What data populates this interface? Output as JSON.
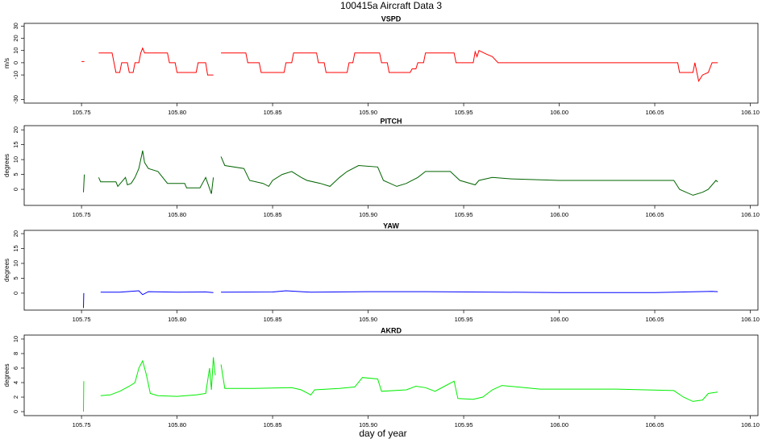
{
  "title": "100415a   Aircraft Data 3",
  "x_label": "day of year",
  "chart_data": [
    {
      "type": "line",
      "title": "VSPD",
      "y_label": "m/s",
      "color": "#ff0000",
      "xlim": [
        105.72,
        106.104
      ],
      "xticks": [
        105.75,
        {
          "value": 105.8,
          "label": "105.80"
        },
        105.85,
        {
          "value": 105.9,
          "label": "105.90"
        },
        105.95,
        {
          "value": 106.0,
          "label": "106.00"
        },
        106.05,
        {
          "value": 106.1,
          "label": "106.10"
        }
      ],
      "ylim": [
        -33,
        32.2
      ],
      "yticks": [
        -30,
        -10,
        0,
        10,
        20,
        30
      ],
      "x": [
        105.75,
        105.7515,
        null,
        105.759,
        105.766,
        105.767,
        105.768,
        105.77,
        105.771,
        105.774,
        105.775,
        105.777,
        105.778,
        105.78,
        105.781,
        105.782,
        105.783,
        105.795,
        105.796,
        105.799,
        105.8,
        105.81,
        105.811,
        105.815,
        105.816,
        105.819,
        null,
        105.823,
        105.836,
        105.837,
        105.843,
        105.844,
        105.856,
        105.857,
        105.86,
        105.861,
        105.873,
        105.874,
        105.877,
        105.878,
        105.889,
        105.89,
        105.892,
        105.893,
        105.906,
        105.907,
        105.91,
        105.911,
        105.922,
        105.923,
        105.925,
        105.926,
        105.929,
        105.93,
        105.945,
        105.946,
        105.955,
        105.956,
        105.957,
        105.958,
        105.962,
        105.965,
        105.968,
        106.062,
        106.063,
        106.07,
        106.071,
        106.073,
        106.075,
        106.078,
        106.08,
        106.083
      ],
      "values": [
        1,
        1,
        null,
        8,
        8,
        0,
        -8,
        -8,
        0,
        0,
        -8,
        -8,
        0,
        0,
        8,
        12,
        8,
        8,
        0,
        0,
        -8,
        -8,
        0,
        0,
        -10,
        -10,
        null,
        8,
        8,
        0,
        0,
        -8,
        -8,
        0,
        0,
        8,
        8,
        0,
        0,
        -8,
        -8,
        0,
        0,
        8,
        8,
        0,
        0,
        -8,
        -8,
        -5,
        -5,
        0,
        0,
        8,
        8,
        0,
        0,
        9,
        5,
        10,
        7,
        5,
        0,
        0,
        -8,
        -8,
        0,
        -15,
        -10,
        -8,
        0,
        0
      ]
    },
    {
      "type": "line",
      "title": "PITCH",
      "y_label": "degrees",
      "color": "#006400",
      "xlim": [
        105.72,
        106.104
      ],
      "xticks": [
        105.75,
        {
          "value": 105.8,
          "label": "105.80"
        },
        105.85,
        {
          "value": 105.9,
          "label": "105.90"
        },
        105.95,
        {
          "value": 106.0,
          "label": "106.00"
        },
        106.05,
        {
          "value": 106.1,
          "label": "106.10"
        }
      ],
      "ylim": [
        -5.4,
        21.4
      ],
      "yticks": [
        0,
        5,
        10,
        15,
        20
      ],
      "x": [
        105.751,
        105.7515,
        null,
        105.759,
        105.76,
        105.768,
        105.769,
        105.771,
        105.773,
        105.774,
        105.776,
        105.778,
        105.78,
        105.782,
        105.783,
        105.785,
        105.79,
        105.795,
        105.804,
        105.805,
        105.812,
        105.815,
        105.818,
        105.819,
        null,
        105.823,
        105.825,
        105.835,
        105.838,
        105.845,
        105.848,
        105.85,
        105.855,
        105.86,
        105.865,
        105.868,
        105.875,
        105.88,
        105.885,
        105.889,
        105.895,
        105.905,
        105.908,
        105.915,
        105.92,
        105.926,
        105.93,
        105.943,
        105.948,
        105.956,
        105.958,
        105.965,
        105.975,
        106.0,
        106.06,
        106.063,
        106.07,
        106.075,
        106.078,
        106.082,
        106.083
      ],
      "values": [
        -1,
        5,
        null,
        4,
        2.5,
        2.5,
        1,
        2.5,
        4,
        1.5,
        2,
        4,
        7,
        13,
        9,
        7,
        6,
        2,
        2,
        0.5,
        0.5,
        4,
        -1.5,
        4,
        null,
        11,
        8,
        7,
        3,
        2,
        1,
        3,
        5,
        6,
        4,
        3,
        2,
        1,
        4,
        6,
        8,
        7.5,
        3,
        1,
        2,
        4,
        6,
        6,
        3,
        1.5,
        3,
        4,
        3.5,
        3,
        3,
        0,
        -2,
        -1,
        0,
        3,
        2.5
      ]
    },
    {
      "type": "line",
      "title": "YAW",
      "y_label": "degrees",
      "color": "#0000ff",
      "xlim": [
        105.72,
        106.104
      ],
      "xticks": [
        105.75,
        {
          "value": 105.8,
          "label": "105.80"
        },
        105.85,
        {
          "value": 105.9,
          "label": "105.90"
        },
        105.95,
        {
          "value": 106.0,
          "label": "106.00"
        },
        106.05,
        {
          "value": 106.1,
          "label": "106.10"
        }
      ],
      "ylim": [
        -5.7,
        21.1
      ],
      "yticks": [
        0,
        5,
        10,
        15,
        20
      ],
      "x": [
        105.751,
        105.7512,
        null,
        105.76,
        105.77,
        105.78,
        105.782,
        105.785,
        105.8,
        105.815,
        105.819,
        null,
        105.823,
        105.85,
        105.857,
        105.87,
        105.9,
        105.93,
        106.0,
        106.05,
        106.08,
        106.083
      ],
      "values": [
        -5,
        0,
        null,
        0.3,
        0.3,
        0.8,
        -0.5,
        0.5,
        0.3,
        0.4,
        0.2,
        null,
        0.3,
        0.4,
        0.8,
        0.3,
        0.5,
        0.5,
        0.2,
        0.2,
        0.6,
        0.5
      ]
    },
    {
      "type": "line",
      "title": "AKRD",
      "y_label": "degrees",
      "color": "#00ee00",
      "xlim": [
        105.72,
        106.104
      ],
      "xticks": [
        105.75,
        {
          "value": 105.8,
          "label": "105.80"
        },
        105.85,
        {
          "value": 105.9,
          "label": "105.90"
        },
        105.95,
        {
          "value": 106.0,
          "label": "106.00"
        },
        106.05,
        {
          "value": 106.1,
          "label": "106.10"
        }
      ],
      "ylim": [
        -0.55,
        10.55
      ],
      "yticks": [
        0,
        2,
        4,
        6,
        8,
        10
      ],
      "x": [
        105.751,
        105.7512,
        null,
        105.76,
        105.765,
        105.77,
        105.775,
        105.778,
        105.78,
        105.782,
        105.784,
        105.786,
        105.79,
        105.8,
        105.81,
        105.815,
        105.817,
        105.818,
        105.819,
        105.82,
        null,
        105.823,
        105.825,
        105.84,
        105.86,
        105.865,
        105.87,
        105.872,
        105.885,
        105.893,
        105.897,
        105.905,
        105.907,
        105.92,
        105.925,
        105.93,
        105.935,
        105.94,
        105.945,
        105.947,
        105.955,
        105.96,
        105.965,
        105.97,
        105.99,
        106.03,
        106.06,
        106.065,
        106.07,
        106.075,
        106.078,
        106.083
      ],
      "values": [
        0,
        4.2,
        null,
        2.2,
        2.3,
        2.8,
        3.5,
        4,
        6,
        7,
        5,
        2.5,
        2.2,
        2.1,
        2.3,
        2.5,
        6,
        3,
        7.5,
        5,
        null,
        6.5,
        3.2,
        3.2,
        3.3,
        3,
        2.3,
        3,
        3.2,
        3.4,
        4.7,
        4.5,
        2.8,
        3,
        3.5,
        3.3,
        2.8,
        3.5,
        4.2,
        1.8,
        1.7,
        2,
        3,
        3.6,
        3.1,
        3.1,
        2.9,
        2,
        1.4,
        1.6,
        2.5,
        2.7
      ]
    }
  ]
}
